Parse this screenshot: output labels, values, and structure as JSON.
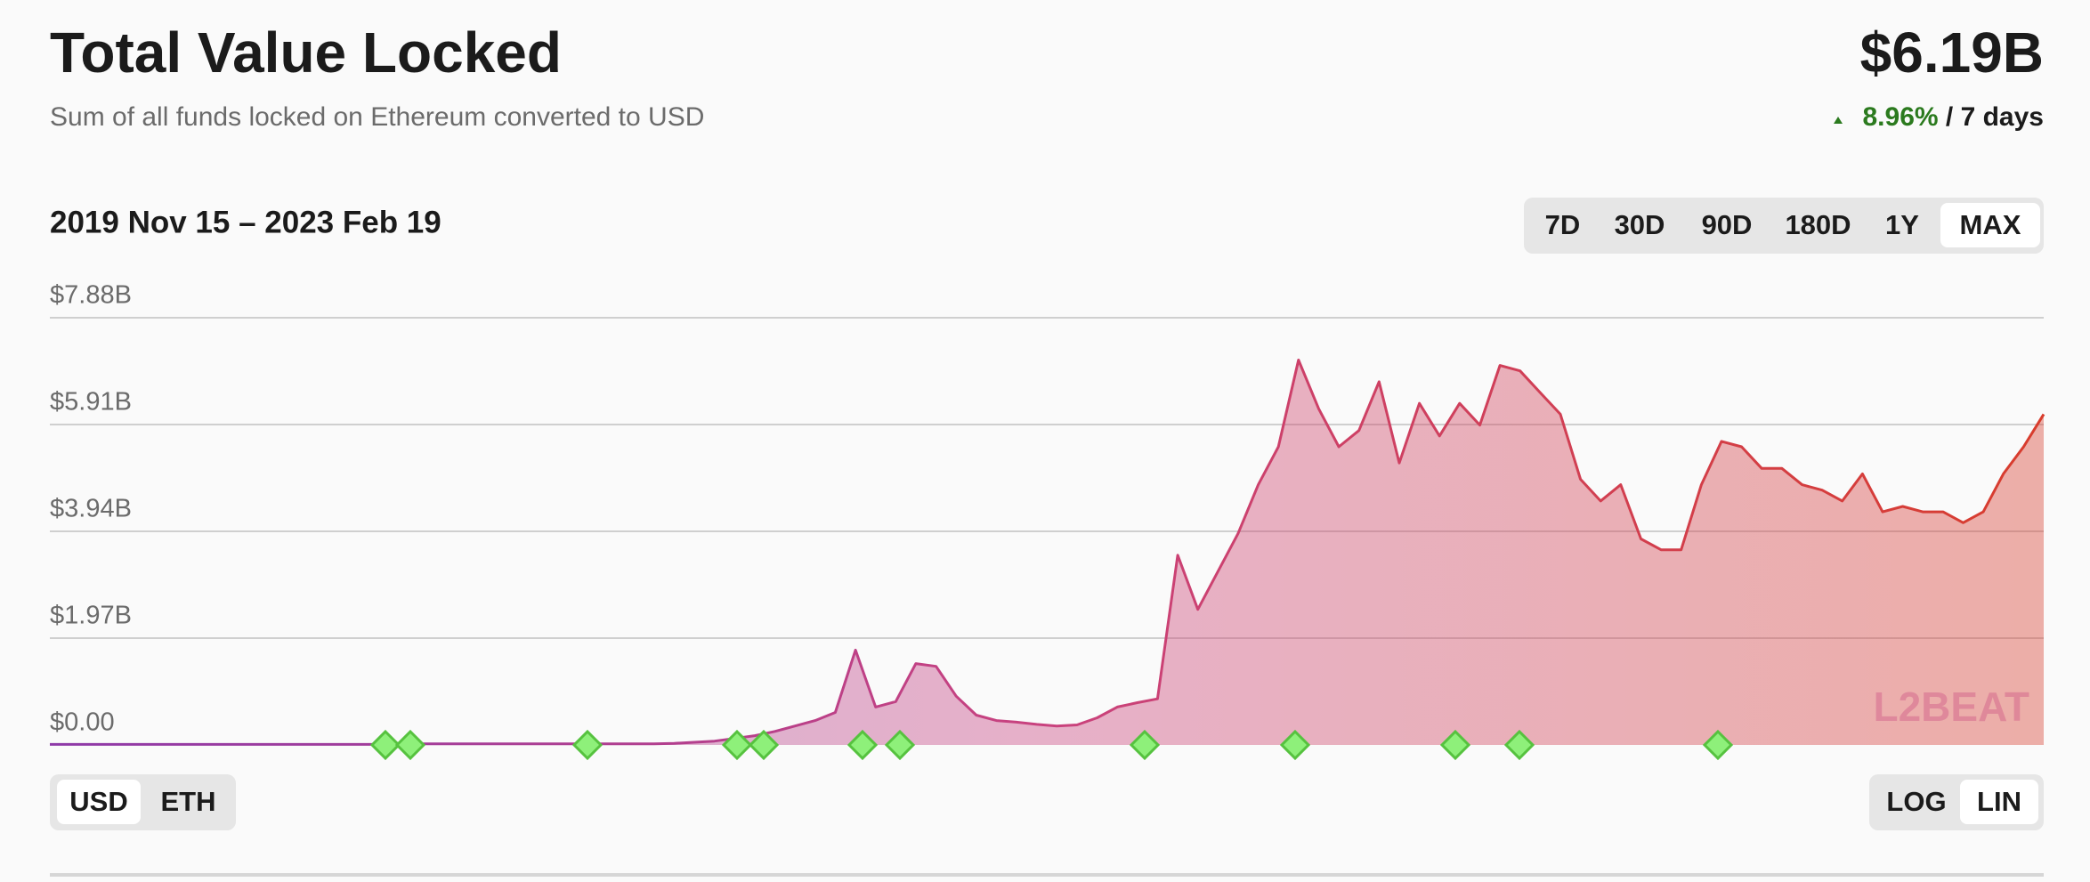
{
  "header": {
    "title": "Total Value Locked",
    "subtitle": "Sum of all funds locked on Ethereum converted to USD",
    "total": "$6.19B",
    "change": "8.96%",
    "change_period": "/ 7 days"
  },
  "chart_data": {
    "type": "area",
    "date_range": "2019 Nov 15 – 2023 Feb 19",
    "values": [
      0.01,
      0.01,
      0.01,
      0.01,
      0.01,
      0.01,
      0.01,
      0.01,
      0.01,
      0.01,
      0.01,
      0.01,
      0.01,
      0.01,
      0.01,
      0.01,
      0.01,
      0.02,
      0.02,
      0.02,
      0.02,
      0.02,
      0.02,
      0.02,
      0.02,
      0.02,
      0.02,
      0.02,
      0.02,
      0.02,
      0.02,
      0.03,
      0.05,
      0.07,
      0.12,
      0.17,
      0.25,
      0.35,
      0.45,
      0.6,
      1.75,
      0.7,
      0.8,
      1.5,
      1.45,
      0.9,
      0.55,
      0.45,
      0.42,
      0.38,
      0.35,
      0.37,
      0.5,
      0.7,
      0.78,
      0.85,
      3.5,
      2.5,
      3.2,
      3.9,
      4.8,
      5.5,
      7.1,
      6.2,
      5.5,
      5.8,
      6.7,
      5.2,
      6.3,
      5.7,
      6.3,
      5.9,
      7.0,
      6.9,
      6.5,
      6.1,
      4.9,
      4.5,
      4.8,
      3.8,
      3.6,
      3.6,
      4.8,
      5.6,
      5.5,
      5.1,
      5.1,
      4.8,
      4.7,
      4.5,
      5.0,
      4.3,
      4.4,
      4.3,
      4.3,
      4.1,
      4.3,
      5.0,
      5.5,
      6.1
    ],
    "ylim": [
      0,
      7.88
    ],
    "yticks": [
      {
        "value": 0,
        "label": "$0.00"
      },
      {
        "value": 1.97,
        "label": "$1.97B"
      },
      {
        "value": 3.94,
        "label": "$3.94B"
      },
      {
        "value": 5.91,
        "label": "$5.91B"
      },
      {
        "value": 7.88,
        "label": "$7.88B"
      }
    ],
    "grid": true,
    "colors": [
      "#8e3aa8",
      "#c9427e",
      "#d83c2c"
    ]
  },
  "controls": {
    "ranges": [
      "7D",
      "30D",
      "90D",
      "180D",
      "1Y",
      "MAX"
    ],
    "units": [
      "USD",
      "ETH"
    ],
    "scales": [
      "LOG",
      "LIN"
    ]
  },
  "watermark": "L2BEAT"
}
